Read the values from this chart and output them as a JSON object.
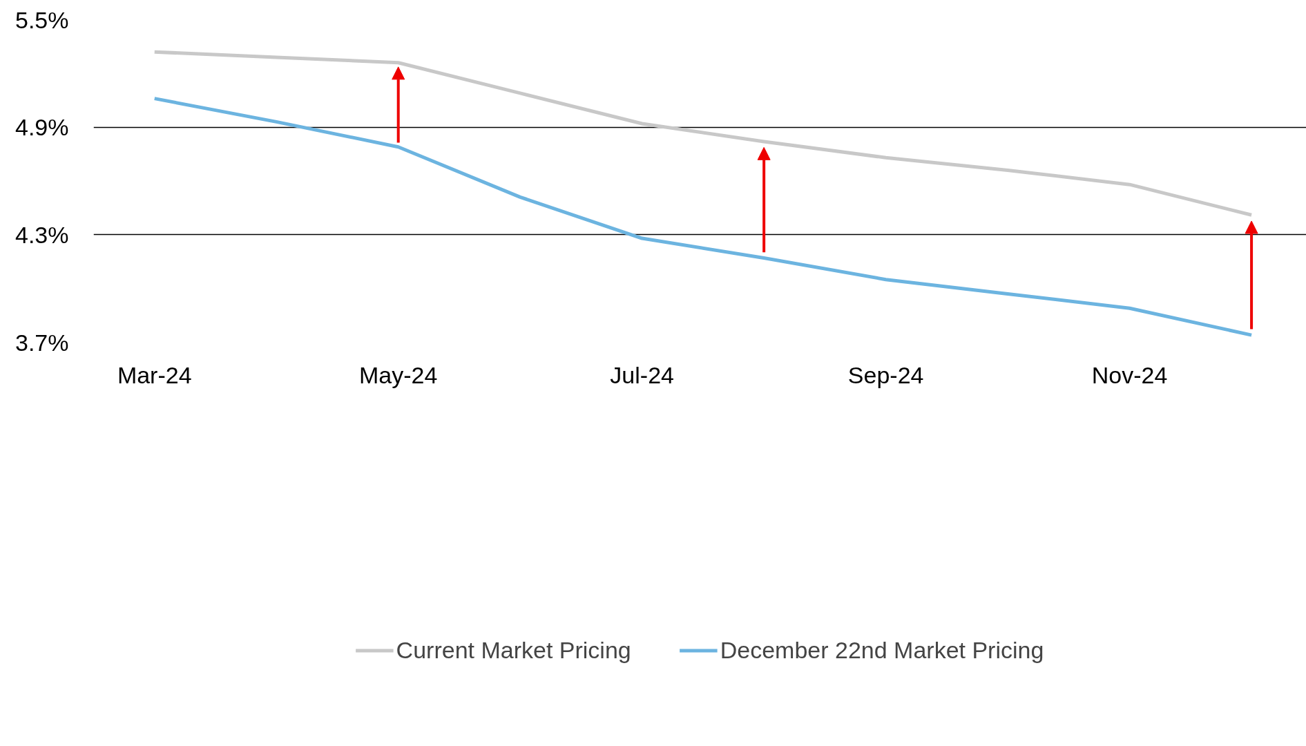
{
  "chart_data": {
    "type": "line",
    "categories": [
      "Mar-24",
      null,
      "May-24",
      null,
      "Jul-24",
      null,
      "Sep-24",
      null,
      "Nov-24",
      null
    ],
    "series": [
      {
        "name": "Current Market Pricing",
        "color": "#c8c8c8",
        "values": [
          5.32,
          5.29,
          5.26,
          5.09,
          4.92,
          4.82,
          4.73,
          4.66,
          4.58,
          4.41
        ]
      },
      {
        "name": "December 22nd Market Pricing",
        "color": "#6cb4e0",
        "values": [
          5.06,
          4.93,
          4.79,
          4.51,
          4.28,
          4.17,
          4.05,
          3.97,
          3.89,
          3.74
        ]
      }
    ],
    "ylim": [
      3.7,
      5.5
    ],
    "yticks": [
      {
        "value": 3.7,
        "label": "3.7%"
      },
      {
        "value": 4.3,
        "label": "4.3%"
      },
      {
        "value": 4.9,
        "label": "4.9%"
      },
      {
        "value": 5.5,
        "label": "5.5%"
      }
    ],
    "grid": "y",
    "legend": "bottom",
    "marker": "none",
    "line_style": "solid"
  }
}
